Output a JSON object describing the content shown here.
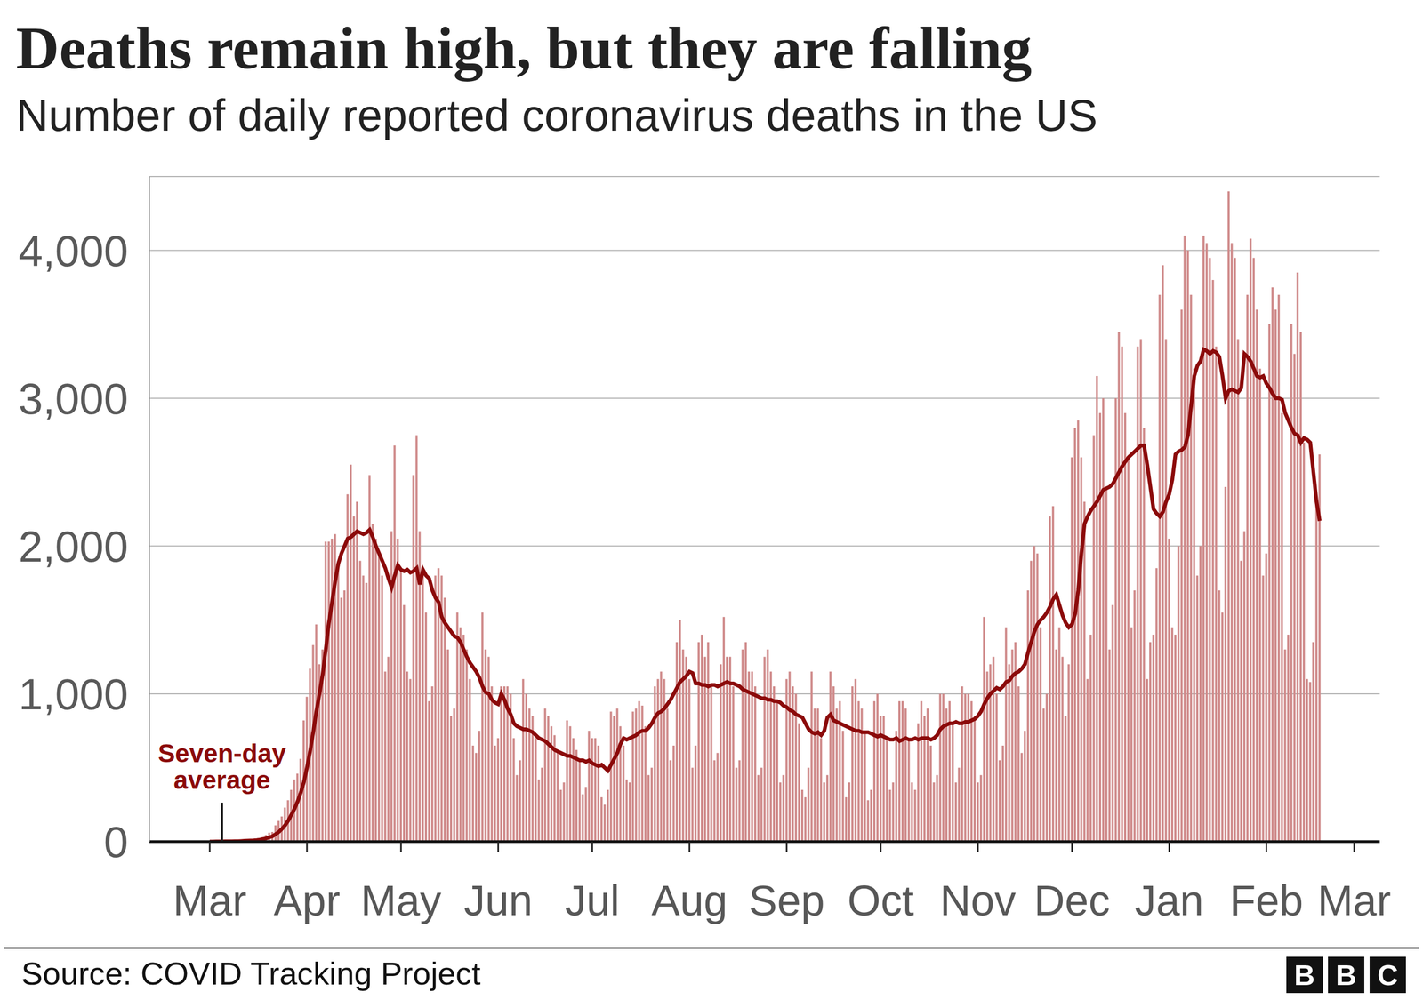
{
  "chart_data": {
    "type": "bar",
    "title": "Deaths remain high, but they are falling",
    "subtitle": "Number of daily reported coronavirus deaths in the US",
    "source": "Source: COVID Tracking Project",
    "logo": "BBC",
    "grid": true,
    "ylim": [
      0,
      4500
    ],
    "yticks": [
      0,
      {
        "value": 1000,
        "label": "1,000"
      },
      {
        "value": 2000,
        "label": "2,000"
      },
      {
        "value": 3000,
        "label": "3,000"
      },
      {
        "value": 4000,
        "label": "4,000"
      }
    ],
    "categories": [
      "Mar",
      null,
      null,
      null,
      null,
      null,
      null,
      null,
      null,
      null,
      null,
      null,
      null,
      null,
      null,
      null,
      null,
      null,
      null,
      null,
      null,
      null,
      null,
      null,
      null,
      null,
      null,
      null,
      null,
      null,
      null,
      "Apr",
      null,
      null,
      null,
      null,
      null,
      null,
      null,
      null,
      null,
      null,
      null,
      null,
      null,
      null,
      null,
      null,
      null,
      null,
      null,
      null,
      null,
      null,
      null,
      null,
      null,
      null,
      null,
      null,
      null,
      "May",
      null,
      null,
      null,
      null,
      null,
      null,
      null,
      null,
      null,
      null,
      null,
      null,
      null,
      null,
      null,
      null,
      null,
      null,
      null,
      null,
      null,
      null,
      null,
      null,
      null,
      null,
      null,
      null,
      null,
      null,
      "Jun",
      null,
      null,
      null,
      null,
      null,
      null,
      null,
      null,
      null,
      null,
      null,
      null,
      null,
      null,
      null,
      null,
      null,
      null,
      null,
      null,
      null,
      null,
      null,
      null,
      null,
      null,
      null,
      null,
      null,
      "Jul",
      null,
      null,
      null,
      null,
      null,
      null,
      null,
      null,
      null,
      null,
      null,
      null,
      null,
      null,
      null,
      null,
      null,
      null,
      null,
      null,
      null,
      null,
      null,
      null,
      null,
      null,
      null,
      null,
      null,
      null,
      "Aug",
      null,
      null,
      null,
      null,
      null,
      null,
      null,
      null,
      null,
      null,
      null,
      null,
      null,
      null,
      null,
      null,
      null,
      null,
      null,
      null,
      null,
      null,
      null,
      null,
      null,
      null,
      null,
      null,
      null,
      null,
      "Sep",
      null,
      null,
      null,
      null,
      null,
      null,
      null,
      null,
      null,
      null,
      null,
      null,
      null,
      null,
      null,
      null,
      null,
      null,
      null,
      null,
      null,
      null,
      null,
      null,
      null,
      null,
      null,
      null,
      null,
      "Oct",
      null,
      null,
      null,
      null,
      null,
      null,
      null,
      null,
      null,
      null,
      null,
      null,
      null,
      null,
      null,
      null,
      null,
      null,
      null,
      null,
      null,
      null,
      null,
      null,
      null,
      null,
      null,
      null,
      null,
      null,
      "Nov",
      null,
      null,
      null,
      null,
      null,
      null,
      null,
      null,
      null,
      null,
      null,
      null,
      null,
      null,
      null,
      null,
      null,
      null,
      null,
      null,
      null,
      null,
      null,
      null,
      null,
      null,
      null,
      null,
      null,
      "Dec",
      null,
      null,
      null,
      null,
      null,
      null,
      null,
      null,
      null,
      null,
      null,
      null,
      null,
      null,
      null,
      null,
      null,
      null,
      null,
      null,
      null,
      null,
      null,
      null,
      null,
      null,
      null,
      null,
      null,
      null,
      "Jan",
      null,
      null,
      null,
      null,
      null,
      null,
      null,
      null,
      null,
      null,
      null,
      null,
      null,
      null,
      null,
      null,
      null,
      null,
      null,
      null,
      null,
      null,
      null,
      null,
      null,
      null,
      null,
      null,
      null,
      null,
      "Feb",
      null,
      null,
      null,
      null,
      null,
      null,
      null,
      null,
      null,
      null,
      null,
      null,
      null,
      null,
      null,
      null,
      null,
      null,
      null,
      null,
      null,
      null,
      null,
      null,
      null,
      null,
      null,
      "Mar"
    ],
    "series": [
      {
        "type": "bar",
        "color": "#d08c8c",
        "values": [
          0,
          1,
          1,
          3,
          2,
          3,
          2,
          3,
          5,
          4,
          7,
          6,
          10,
          9,
          12,
          18,
          23,
          30,
          45,
          60,
          65,
          110,
          140,
          170,
          230,
          280,
          350,
          420,
          460,
          560,
          820,
          980,
          1170,
          1330,
          1470,
          1200,
          1300,
          2030,
          2030,
          2050,
          2080,
          1900,
          1650,
          1700,
          2350,
          2550,
          2200,
          2300,
          1900,
          1800,
          1750,
          2480,
          2150,
          2050,
          1950,
          1800,
          1150,
          1250,
          2100,
          2680,
          2050,
          1850,
          1600,
          1150,
          1100,
          2480,
          2750,
          2100,
          1850,
          1550,
          950,
          1050,
          1800,
          1850,
          1800,
          1650,
          1300,
          850,
          900,
          1550,
          1450,
          1400,
          1300,
          1100,
          650,
          600,
          750,
          1550,
          1300,
          1250,
          1050,
          650,
          700,
          1050,
          1050,
          1050,
          1000,
          700,
          450,
          550,
          1100,
          1000,
          900,
          850,
          700,
          420,
          500,
          900,
          850,
          780,
          720,
          600,
          350,
          400,
          820,
          780,
          700,
          620,
          550,
          320,
          370,
          750,
          700,
          700,
          650,
          300,
          250,
          350,
          880,
          850,
          900,
          780,
          650,
          420,
          400,
          880,
          900,
          950,
          920,
          780,
          450,
          500,
          1050,
          1100,
          1150,
          1100,
          900,
          550,
          650,
          1350,
          1500,
          1300,
          1250,
          1100,
          500,
          650,
          1350,
          1400,
          1250,
          1350,
          1050,
          550,
          600,
          1200,
          1520,
          1250,
          1250,
          1050,
          500,
          550,
          1300,
          1350,
          1150,
          1150,
          1050,
          450,
          500,
          1250,
          1300,
          1150,
          1050,
          950,
          400,
          450,
          1100,
          1150,
          1050,
          1000,
          800,
          350,
          300,
          500,
          1150,
          900,
          900,
          700,
          400,
          450,
          1150,
          1050,
          900,
          950,
          750,
          300,
          400,
          1050,
          1100,
          950,
          900,
          750,
          280,
          350,
          950,
          1000,
          850,
          850,
          700,
          350,
          400,
          750,
          950,
          950,
          900,
          700,
          400,
          350,
          800,
          950,
          850,
          900,
          650,
          400,
          450,
          1000,
          1000,
          900,
          950,
          800,
          400,
          500,
          1050,
          1000,
          1000,
          950,
          850,
          400,
          450,
          1520,
          1150,
          1200,
          1250,
          1000,
          550,
          650,
          1450,
          1200,
          1300,
          1350,
          1050,
          600,
          750,
          1700,
          1900,
          2000,
          1950,
          1450,
          900,
          1000,
          2200,
          2270,
          1300,
          1450,
          1250,
          850,
          1200,
          2600,
          2800,
          2850,
          2600,
          2300,
          1100,
          1400,
          2750,
          3150,
          2900,
          3000,
          2400,
          1300,
          1600,
          3000,
          3450,
          3350,
          2900,
          2600,
          1450,
          1700,
          3350,
          3400,
          2800,
          1100,
          1350,
          1400,
          1850,
          3700,
          3900,
          3400,
          2050,
          1450,
          1400,
          2000,
          3600,
          4100,
          4000,
          3700,
          3200,
          1800,
          2000,
          4100,
          4050,
          3950,
          3800,
          3350,
          1700,
          1550,
          2400,
          4400,
          4050,
          3950,
          3400,
          1900,
          2100,
          3700,
          4080,
          3950,
          3600,
          3200,
          1800,
          1950,
          3500,
          3750,
          3600,
          3700,
          2900,
          1300,
          1400,
          3500,
          3300,
          3850,
          3450,
          2700,
          1100,
          1080,
          1350,
          2300,
          2620,
          null,
          null,
          null,
          null,
          null,
          null,
          null,
          null,
          null,
          null,
          null
        ]
      },
      {
        "name": "Seven-day average",
        "type": "line",
        "color": "#8b0a0a",
        "values": [
          0,
          0,
          1,
          1,
          1,
          2,
          2,
          2,
          3,
          3,
          4,
          5,
          6,
          7,
          8,
          10,
          13,
          17,
          22,
          29,
          36,
          50,
          65,
          85,
          110,
          140,
          180,
          220,
          270,
          330,
          400,
          500,
          610,
          740,
          880,
          1000,
          1130,
          1300,
          1480,
          1620,
          1760,
          1880,
          1950,
          2000,
          2050,
          2060,
          2080,
          2100,
          2090,
          2080,
          2090,
          2110,
          2060,
          2000,
          1950,
          1900,
          1850,
          1780,
          1720,
          1800,
          1870,
          1840,
          1830,
          1840,
          1820,
          1830,
          1850,
          1740,
          1840,
          1800,
          1780,
          1700,
          1650,
          1620,
          1520,
          1480,
          1450,
          1420,
          1390,
          1380,
          1350,
          1300,
          1250,
          1210,
          1180,
          1150,
          1110,
          1050,
          1010,
          1000,
          960,
          940,
          930,
          1000,
          960,
          900,
          860,
          800,
          780,
          770,
          760,
          760,
          750,
          740,
          720,
          700,
          690,
          680,
          660,
          640,
          620,
          610,
          600,
          590,
          580,
          580,
          570,
          560,
          550,
          550,
          540,
          550,
          530,
          520,
          510,
          520,
          500,
          480,
          520,
          560,
          600,
          660,
          700,
          690,
          700,
          710,
          720,
          740,
          750,
          750,
          770,
          800,
          840,
          870,
          880,
          900,
          930,
          960,
          1000,
          1040,
          1080,
          1100,
          1120,
          1150,
          1140,
          1070,
          1070,
          1060,
          1060,
          1050,
          1060,
          1060,
          1050,
          1060,
          1070,
          1080,
          1070,
          1070,
          1060,
          1050,
          1030,
          1020,
          1010,
          1000,
          990,
          980,
          970,
          970,
          960,
          960,
          950,
          950,
          940,
          920,
          910,
          890,
          880,
          860,
          850,
          840,
          800,
          760,
          740,
          730,
          740,
          720,
          750,
          840,
          860,
          820,
          810,
          800,
          790,
          780,
          770,
          760,
          750,
          750,
          740,
          740,
          740,
          730,
          720,
          710,
          720,
          710,
          700,
          690,
          690,
          700,
          680,
          690,
          700,
          690,
          690,
          700,
          690,
          700,
          700,
          700,
          690,
          700,
          720,
          760,
          780,
          790,
          800,
          800,
          810,
          800,
          800,
          810,
          810,
          820,
          830,
          850,
          880,
          930,
          970,
          1000,
          1020,
          1040,
          1030,
          1050,
          1080,
          1090,
          1120,
          1140,
          1150,
          1170,
          1200,
          1280,
          1350,
          1420,
          1470,
          1500,
          1520,
          1550,
          1590,
          1640,
          1670,
          1600,
          1530,
          1480,
          1450,
          1470,
          1540,
          1700,
          1950,
          2150,
          2200,
          2240,
          2270,
          2300,
          2340,
          2380,
          2390,
          2400,
          2420,
          2460,
          2500,
          2540,
          2570,
          2600,
          2620,
          2640,
          2660,
          2680,
          2680,
          2550,
          2400,
          2250,
          2220,
          2200,
          2230,
          2300,
          2350,
          2450,
          2620,
          2640,
          2650,
          2670,
          2750,
          2950,
          3150,
          3220,
          3250,
          3330,
          3320,
          3300,
          3320,
          3310,
          3280,
          3150,
          3000,
          3050,
          3060,
          3050,
          3040,
          3070,
          3300,
          3280,
          3250,
          3200,
          3150,
          3140,
          3150,
          3100,
          3070,
          3030,
          3000,
          3000,
          2990,
          2900,
          2850,
          2800,
          2760,
          2750,
          2700,
          2730,
          2720,
          2700,
          2500,
          2300,
          2170,
          null,
          null,
          null,
          null,
          null,
          null,
          null,
          null,
          null,
          null,
          null
        ]
      }
    ]
  }
}
